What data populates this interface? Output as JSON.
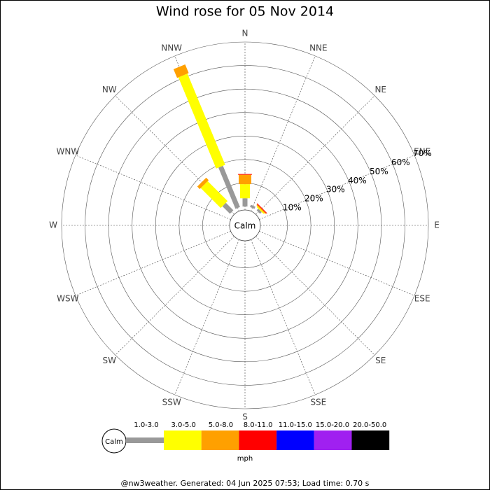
{
  "chart_data": {
    "type": "windrose",
    "title": "Wind rose for 05 Nov 2014",
    "directions": [
      "N",
      "NNE",
      "NE",
      "ENE",
      "E",
      "ESE",
      "SE",
      "SSE",
      "S",
      "SSW",
      "SW",
      "WSW",
      "W",
      "WNW",
      "NW",
      "NNW"
    ],
    "calm_label": "Calm",
    "unit_label": "mph",
    "footer": "@nw3weather. Generated: 04 Jun 2025 07:53; Load time: 0.70 s",
    "rlim": [
      0,
      70
    ],
    "rticks": [
      {
        "value": 10,
        "label": "10%"
      },
      {
        "value": 20,
        "label": "20%"
      },
      {
        "value": 30,
        "label": "30%"
      },
      {
        "value": 40,
        "label": "40%"
      },
      {
        "value": 50,
        "label": "50%"
      },
      {
        "value": 60,
        "label": "60%"
      },
      {
        "value": 70,
        "label": "70%"
      }
    ],
    "series": [
      {
        "name": "1.0-3.0",
        "color": "#999999",
        "values": [
          3.5,
          1,
          1,
          0,
          0,
          0,
          0,
          0,
          0,
          0,
          0,
          0,
          0,
          0,
          4.5,
          19
        ]
      },
      {
        "name": "3.0-5.0",
        "color": "#ffff00",
        "values": [
          6,
          0,
          0.5,
          0,
          0,
          0,
          0,
          0,
          0,
          0,
          0,
          0,
          0,
          0,
          12,
          42
        ]
      },
      {
        "name": "5.0-8.0",
        "color": "#ffa000",
        "values": [
          4,
          0,
          0.5,
          0,
          0,
          0,
          0,
          0,
          0,
          0,
          0,
          0,
          0,
          0,
          1.5,
          4
        ]
      },
      {
        "name": "8.0-11.0",
        "color": "#ff0000",
        "values": [
          0.3,
          0,
          0.3,
          0,
          0,
          0,
          0,
          0,
          0,
          0,
          0,
          0,
          0,
          0,
          0,
          0
        ]
      },
      {
        "name": "11.0-15.0",
        "color": "#0000ff",
        "values": [
          0,
          0,
          0,
          0,
          0,
          0,
          0,
          0,
          0,
          0,
          0,
          0,
          0,
          0,
          0,
          0
        ]
      },
      {
        "name": "15.0-20.0",
        "color": "#a020f0",
        "values": [
          0,
          0,
          0,
          0,
          0,
          0,
          0,
          0,
          0,
          0,
          0,
          0,
          0,
          0,
          0,
          0
        ]
      },
      {
        "name": "20.0-50.0",
        "color": "#000000",
        "values": [
          0,
          0,
          0,
          0,
          0,
          0,
          0,
          0,
          0,
          0,
          0,
          0,
          0,
          0,
          0,
          0
        ]
      }
    ]
  }
}
